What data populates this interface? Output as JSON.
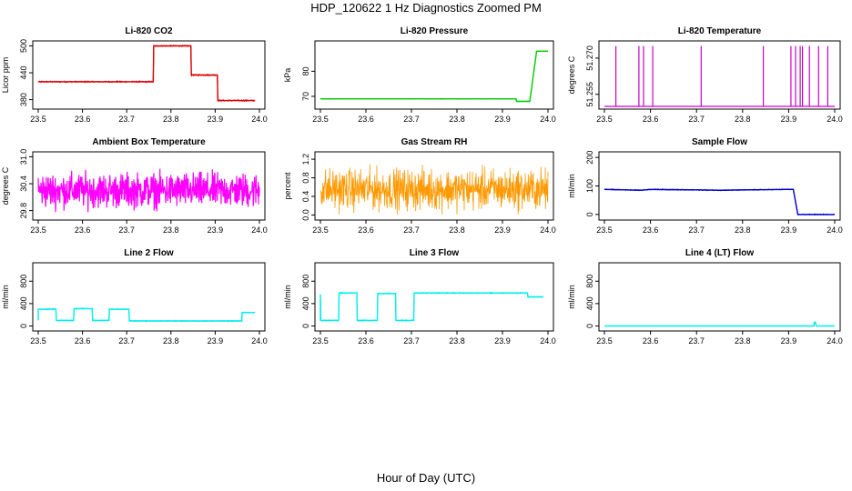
{
  "title": "HDP_120622  1 Hz Diagnostics Zoomed PM",
  "xlabel": "Hour of Day (UTC)",
  "chart_data": [
    {
      "type": "line",
      "title": "Li-820 CO2",
      "ylabel": "Licor ppm",
      "color": "#dd0000",
      "xlim": [
        23.5,
        24.0
      ],
      "ylim": [
        365,
        505
      ],
      "xticks": [
        "23.5",
        "23.6",
        "23.7",
        "23.8",
        "23.9",
        "24.0"
      ],
      "yticks": [
        {
          "v": 380,
          "l": "380"
        },
        {
          "v": 440,
          "l": "440"
        },
        {
          "v": 500,
          "l": "500"
        }
      ],
      "series": [
        {
          "x": [
            23.5,
            23.76,
            23.761,
            23.845,
            23.846,
            23.905,
            23.906,
            23.99
          ],
          "y": [
            420,
            420,
            500,
            500,
            435,
            435,
            378,
            378
          ],
          "noise": 1.5
        }
      ]
    },
    {
      "type": "line",
      "title": "Li-820 Pressure",
      "ylabel": "kPa",
      "color": "#00cc00",
      "xlim": [
        23.5,
        24.0
      ],
      "ylim": [
        66,
        91
      ],
      "xticks": [
        "23.5",
        "23.6",
        "23.7",
        "23.8",
        "23.9",
        "24.0"
      ],
      "yticks": [
        {
          "v": 70,
          "l": "70"
        },
        {
          "v": 80,
          "l": "80"
        }
      ],
      "series": [
        {
          "x": [
            23.5,
            23.93,
            23.931,
            23.96,
            23.975,
            23.98,
            24.0
          ],
          "y": [
            69,
            69,
            68,
            68,
            88,
            88,
            88
          ],
          "noise": 0.1
        }
      ]
    },
    {
      "type": "line",
      "title": "Li-820 Temperature",
      "ylabel": "degrees C",
      "color": "#cc00cc",
      "xlim": [
        23.5,
        24.0
      ],
      "ylim": [
        51.25,
        51.276
      ],
      "xticks": [
        "23.5",
        "23.6",
        "23.7",
        "23.8",
        "23.9",
        "24.0"
      ],
      "yticks": [
        {
          "v": 51.255,
          "l": "51.255"
        },
        {
          "v": 51.27,
          "l": "51.270"
        }
      ],
      "base": 51.25,
      "spikes": [
        23.525,
        23.575,
        23.585,
        23.605,
        23.71,
        23.845,
        23.905,
        23.915,
        23.925,
        23.93,
        23.945,
        23.965,
        23.985
      ],
      "spike_top": 51.275
    },
    {
      "type": "line",
      "title": "Ambient Box Temperature",
      "ylabel": "degrees C",
      "color": "#ff00ff",
      "xlim": [
        23.5,
        24.0
      ],
      "ylim": [
        29.65,
        31.05
      ],
      "xticks": [
        "23.5",
        "23.6",
        "23.7",
        "23.8",
        "23.9",
        "24.0"
      ],
      "yticks": [
        {
          "v": 29.8,
          "l": "29.8"
        },
        {
          "v": 30.4,
          "l": "30.4"
        },
        {
          "v": 31.0,
          "l": "31.0"
        }
      ],
      "mean": 30.25,
      "spread": 0.35,
      "lw": 1.2
    },
    {
      "type": "line",
      "title": "Gas Stream RH",
      "ylabel": "percent",
      "color": "#ff9900",
      "xlim": [
        23.5,
        24.0
      ],
      "ylim": [
        -0.05,
        1.3
      ],
      "xticks": [
        "23.5",
        "23.6",
        "23.7",
        "23.8",
        "23.9",
        "24.0"
      ],
      "yticks": [
        {
          "v": 0,
          "l": "0.0"
        },
        {
          "v": 0.4,
          "l": "0.4"
        },
        {
          "v": 0.8,
          "l": "0.8"
        },
        {
          "v": 1.2,
          "l": "1.2"
        }
      ],
      "mean": 0.55,
      "spread": 0.4,
      "lw": 0.8
    },
    {
      "type": "line",
      "title": "Sample Flow",
      "ylabel": "ml/min",
      "color": "#0000cc",
      "xlim": [
        23.5,
        24.0
      ],
      "ylim": [
        -10,
        210
      ],
      "xticks": [
        "23.5",
        "23.6",
        "23.7",
        "23.8",
        "23.9",
        "24.0"
      ],
      "yticks": [
        {
          "v": 0,
          "l": "0"
        },
        {
          "v": 100,
          "l": "100"
        },
        {
          "v": 200,
          "l": "200"
        }
      ],
      "series": [
        {
          "x": [
            23.5,
            23.58,
            23.6,
            23.75,
            23.9,
            23.91,
            23.92,
            24.0
          ],
          "y": [
            88,
            85,
            88,
            85,
            88,
            88,
            0,
            0
          ],
          "noise": 1.5
        }
      ]
    },
    {
      "type": "line",
      "title": "Line 2 Flow",
      "ylabel": "ml/min",
      "color": "#00eeee",
      "xlim": [
        23.5,
        24.0
      ],
      "ylim": [
        -40,
        1080
      ],
      "xticks": [
        "23.5",
        "23.6",
        "23.7",
        "23.8",
        "23.9",
        "24.0"
      ],
      "yticks": [
        {
          "v": 0,
          "l": "0"
        },
        {
          "v": 400,
          "l": "400"
        },
        {
          "v": 800,
          "l": "800"
        }
      ],
      "series": [
        {
          "x": [
            23.5,
            23.5,
            23.54,
            23.541,
            23.58,
            23.581,
            23.622,
            23.623,
            23.66,
            23.661,
            23.705,
            23.706,
            23.96,
            23.961,
            23.99
          ],
          "y": [
            100,
            300,
            300,
            100,
            100,
            310,
            310,
            100,
            100,
            300,
            300,
            90,
            90,
            240,
            240
          ],
          "noise": 8
        }
      ]
    },
    {
      "type": "line",
      "title": "Line 3 Flow",
      "ylabel": "ml/min",
      "color": "#00eeee",
      "xlim": [
        23.5,
        24.0
      ],
      "ylim": [
        -40,
        1080
      ],
      "xticks": [
        "23.5",
        "23.6",
        "23.7",
        "23.8",
        "23.9",
        "24.0"
      ],
      "yticks": [
        {
          "v": 0,
          "l": "0"
        },
        {
          "v": 400,
          "l": "400"
        },
        {
          "v": 800,
          "l": "800"
        }
      ],
      "series": [
        {
          "x": [
            23.5,
            23.5,
            23.501,
            23.54,
            23.541,
            23.58,
            23.581,
            23.625,
            23.626,
            23.665,
            23.666,
            23.705,
            23.706,
            23.955,
            23.956,
            23.99
          ],
          "y": [
            100,
            560,
            100,
            100,
            590,
            590,
            100,
            100,
            580,
            580,
            100,
            100,
            590,
            590,
            520,
            520
          ],
          "noise": 10
        }
      ]
    },
    {
      "type": "line",
      "title": "Line 4 (LT) Flow",
      "ylabel": "ml/min",
      "color": "#00eeee",
      "xlim": [
        23.5,
        24.0
      ],
      "ylim": [
        -40,
        1080
      ],
      "xticks": [
        "23.5",
        "23.6",
        "23.7",
        "23.8",
        "23.9",
        "24.0"
      ],
      "yticks": [
        {
          "v": 0,
          "l": "0"
        },
        {
          "v": 400,
          "l": "400"
        },
        {
          "v": 800,
          "l": "800"
        }
      ],
      "series": [
        {
          "x": [
            23.5,
            23.955,
            23.956,
            23.958,
            23.96,
            24.0
          ],
          "y": [
            0,
            0,
            70,
            70,
            0,
            0
          ],
          "noise": 0
        }
      ]
    }
  ]
}
